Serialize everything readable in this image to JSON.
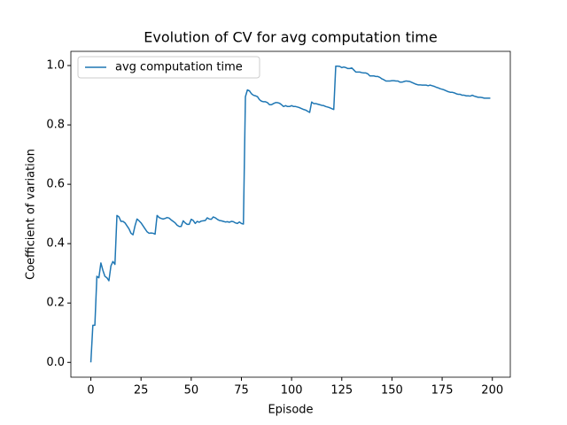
{
  "chart_data": {
    "type": "line",
    "title": "Evolution of CV for avg computation time",
    "x_label": "Episode",
    "y_label": "Coefficient of variation",
    "x": [
      0,
      1,
      2,
      3,
      4,
      5,
      6,
      7,
      8,
      9,
      10,
      11,
      12,
      13,
      14,
      15,
      16,
      17,
      18,
      19,
      20,
      21,
      22,
      23,
      24,
      25,
      26,
      27,
      28,
      29,
      30,
      31,
      32,
      33,
      34,
      35,
      36,
      37,
      38,
      39,
      40,
      41,
      42,
      43,
      44,
      45,
      46,
      47,
      48,
      49,
      50,
      51,
      52,
      53,
      54,
      55,
      56,
      57,
      58,
      59,
      60,
      61,
      62,
      63,
      64,
      65,
      66,
      67,
      68,
      69,
      70,
      71,
      72,
      73,
      74,
      75,
      76,
      77,
      78,
      79,
      80,
      81,
      82,
      83,
      84,
      85,
      86,
      87,
      88,
      89,
      90,
      91,
      92,
      93,
      94,
      95,
      96,
      97,
      98,
      99,
      100,
      101,
      102,
      103,
      104,
      105,
      106,
      107,
      108,
      109,
      110,
      111,
      112,
      113,
      114,
      115,
      116,
      117,
      118,
      119,
      120,
      121,
      122,
      123,
      124,
      125,
      126,
      127,
      128,
      129,
      130,
      131,
      132,
      133,
      134,
      135,
      136,
      137,
      138,
      139,
      140,
      141,
      142,
      143,
      144,
      145,
      146,
      147,
      148,
      149,
      150,
      151,
      152,
      153,
      154,
      155,
      156,
      157,
      158,
      159,
      160,
      161,
      162,
      163,
      164,
      165,
      166,
      167,
      168,
      169,
      170,
      171,
      172,
      173,
      174,
      175,
      176,
      177,
      178,
      179,
      180,
      181,
      182,
      183,
      184,
      185,
      186,
      187,
      188,
      189,
      190,
      191,
      192,
      193,
      194,
      195,
      196,
      197,
      198,
      199
    ],
    "series": [
      {
        "name": "avg computation time",
        "color": "#1f77b4",
        "values": [
          0.0,
          0.125,
          0.125,
          0.29,
          0.285,
          0.335,
          0.31,
          0.29,
          0.285,
          0.275,
          0.325,
          0.34,
          0.33,
          0.495,
          0.49,
          0.475,
          0.475,
          0.47,
          0.46,
          0.45,
          0.435,
          0.43,
          0.46,
          0.483,
          0.477,
          0.47,
          0.46,
          0.45,
          0.44,
          0.435,
          0.436,
          0.435,
          0.432,
          0.495,
          0.488,
          0.485,
          0.483,
          0.485,
          0.488,
          0.486,
          0.48,
          0.475,
          0.47,
          0.462,
          0.458,
          0.458,
          0.477,
          0.47,
          0.465,
          0.465,
          0.482,
          0.478,
          0.468,
          0.475,
          0.472,
          0.476,
          0.477,
          0.478,
          0.487,
          0.483,
          0.482,
          0.49,
          0.487,
          0.482,
          0.478,
          0.477,
          0.475,
          0.473,
          0.474,
          0.472,
          0.475,
          0.474,
          0.47,
          0.468,
          0.473,
          0.468,
          0.466,
          0.895,
          0.918,
          0.915,
          0.905,
          0.9,
          0.898,
          0.895,
          0.885,
          0.88,
          0.878,
          0.878,
          0.875,
          0.868,
          0.868,
          0.872,
          0.875,
          0.875,
          0.873,
          0.868,
          0.862,
          0.865,
          0.862,
          0.862,
          0.865,
          0.862,
          0.862,
          0.86,
          0.858,
          0.855,
          0.852,
          0.85,
          0.846,
          0.842,
          0.877,
          0.872,
          0.872,
          0.87,
          0.868,
          0.866,
          0.865,
          0.862,
          0.86,
          0.858,
          0.855,
          0.852,
          0.998,
          0.998,
          0.997,
          0.993,
          0.995,
          0.993,
          0.99,
          0.99,
          0.992,
          0.985,
          0.978,
          0.978,
          0.978,
          0.976,
          0.975,
          0.975,
          0.972,
          0.965,
          0.965,
          0.965,
          0.963,
          0.963,
          0.96,
          0.955,
          0.952,
          0.948,
          0.948,
          0.948,
          0.949,
          0.949,
          0.948,
          0.948,
          0.944,
          0.944,
          0.946,
          0.948,
          0.947,
          0.946,
          0.943,
          0.94,
          0.937,
          0.935,
          0.935,
          0.934,
          0.934,
          0.934,
          0.932,
          0.934,
          0.932,
          0.93,
          0.927,
          0.925,
          0.922,
          0.92,
          0.918,
          0.915,
          0.912,
          0.91,
          0.91,
          0.908,
          0.905,
          0.903,
          0.903,
          0.9,
          0.9,
          0.898,
          0.898,
          0.897,
          0.9,
          0.897,
          0.895,
          0.893,
          0.893,
          0.892,
          0.89,
          0.89,
          0.89,
          0.89
        ]
      }
    ],
    "xlim": [
      -9.95,
      208.95
    ],
    "ylim": [
      -0.0499,
      1.0478
    ],
    "xticks": [
      0,
      25,
      50,
      75,
      100,
      125,
      150,
      175,
      200
    ],
    "yticks": [
      {
        "value": 0,
        "label": "0.0"
      },
      0.2,
      0.4,
      0.6,
      0.8,
      {
        "value": 1,
        "label": "1.0"
      }
    ],
    "legend": "upper left",
    "grid": false
  }
}
